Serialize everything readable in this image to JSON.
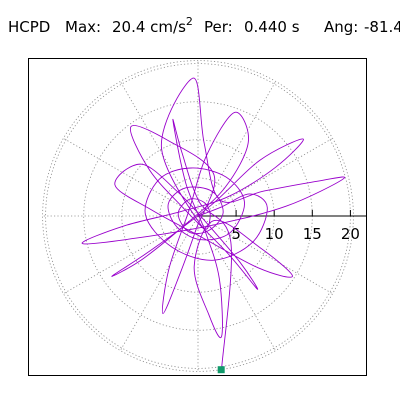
{
  "header": {
    "station": "HCPD",
    "max_label": "Max:",
    "max_value": "20.4 cm/s",
    "max_exp": "2",
    "per_label": "Per:",
    "per_value": "0.440 s",
    "ang_label": "Ang:",
    "ang_value": "-81.4"
  },
  "chart_data": {
    "type": "scatter",
    "title": "",
    "xlabel": "",
    "ylabel": "",
    "polar": true,
    "rlim": [
      0,
      20.4
    ],
    "r_ticks": [
      5,
      10,
      15,
      20
    ],
    "r_tick_labels": [
      "5",
      "10",
      "15",
      "20"
    ],
    "angular_grid_step_deg": 30,
    "grid": true,
    "peak": {
      "amplitude": 20.4,
      "angle_deg": -81.4
    },
    "series": [
      {
        "values_description_free": true,
        "color": "#9900cc",
        "points": [
          [
            0,
            0
          ],
          [
            3.1,
            1.2
          ],
          [
            6.8,
            2.9
          ],
          [
            9.1,
            1.1
          ],
          [
            7.2,
            -3.4
          ],
          [
            2.1,
            -5.8
          ],
          [
            -3.4,
            -4.1
          ],
          [
            -6.9,
            0.2
          ],
          [
            -5.1,
            4.8
          ],
          [
            -0.9,
            6.3
          ],
          [
            3.7,
            5.1
          ],
          [
            6.1,
            1.8
          ],
          [
            4.2,
            -2.2
          ],
          [
            0.3,
            -3.1
          ],
          [
            -2.8,
            -1.4
          ],
          [
            -3.9,
            1.6
          ],
          [
            -1.6,
            3.7
          ],
          [
            1.9,
            3.2
          ],
          [
            3.3,
            0.4
          ],
          [
            1.4,
            -1.9
          ],
          [
            -1.2,
            -2.1
          ],
          [
            -2.6,
            0.3
          ],
          [
            -1.1,
            2.2
          ],
          [
            0.9,
            1.7
          ],
          [
            1.6,
            -0.1
          ],
          [
            0.4,
            -1.2
          ],
          [
            -4.8,
            9.1
          ],
          [
            -0.6,
            18.1
          ],
          [
            0.8,
            9.6
          ],
          [
            2.9,
            2.1
          ],
          [
            8.7,
            3.3
          ],
          [
            15.9,
            4.6
          ],
          [
            19.1,
            4.9
          ],
          [
            11.6,
            1.3
          ],
          [
            2.4,
            -1.1
          ],
          [
            -8.1,
            -2.9
          ],
          [
            -15.2,
            -3.6
          ],
          [
            -9.7,
            -1.3
          ],
          [
            -2.2,
            0.6
          ],
          [
            4.1,
            2.6
          ],
          [
            10.2,
            6.4
          ],
          [
            13.8,
            10.1
          ],
          [
            8.1,
            7.3
          ],
          [
            1.7,
            1.4
          ],
          [
            -5.9,
            -4.3
          ],
          [
            -11.3,
            -7.9
          ],
          [
            -7.2,
            -5.6
          ],
          [
            -1.4,
            -0.9
          ],
          [
            3.6,
            3.8
          ],
          [
            6.6,
            9.7
          ],
          [
            4.8,
            13.6
          ],
          [
            1.1,
            7.9
          ],
          [
            -1.2,
            0.7
          ],
          [
            -3.8,
            -6.9
          ],
          [
            -4.6,
            -12.8
          ],
          [
            -2.3,
            -7.4
          ],
          [
            -0.2,
            -1.6
          ],
          [
            2.1,
            5.4
          ],
          [
            -3.9,
            9.9
          ],
          [
            -8.8,
            11.7
          ],
          [
            -6.4,
            6.1
          ],
          [
            -1.8,
            0.9
          ],
          [
            3.9,
            -4.9
          ],
          [
            7.8,
            -9.6
          ],
          [
            5.6,
            -6.2
          ],
          [
            1.3,
            -1.1
          ],
          [
            -2.7,
            3.2
          ],
          [
            -7.4,
            6.8
          ],
          [
            -10.9,
            4.1
          ],
          [
            -6.1,
            0.8
          ],
          [
            0.7,
            -2.9
          ],
          [
            7.9,
            -6.8
          ],
          [
            12.4,
            -7.9
          ],
          [
            8.2,
            -4.2
          ],
          [
            2.1,
            -0.6
          ],
          [
            -0.5,
            -6.6
          ],
          [
            1.4,
            -12.9
          ],
          [
            3.1,
            -15.8
          ],
          [
            2.8,
            -8.2
          ],
          [
            0.9,
            -1.9
          ],
          [
            -1.6,
            4.3
          ],
          [
            -3.3,
            12.6
          ],
          [
            -2.1,
            8.3
          ],
          [
            0.2,
            1.8
          ],
          [
            4.3,
            -3.4
          ],
          [
            3.09,
            -20.16
          ]
        ]
      }
    ]
  }
}
